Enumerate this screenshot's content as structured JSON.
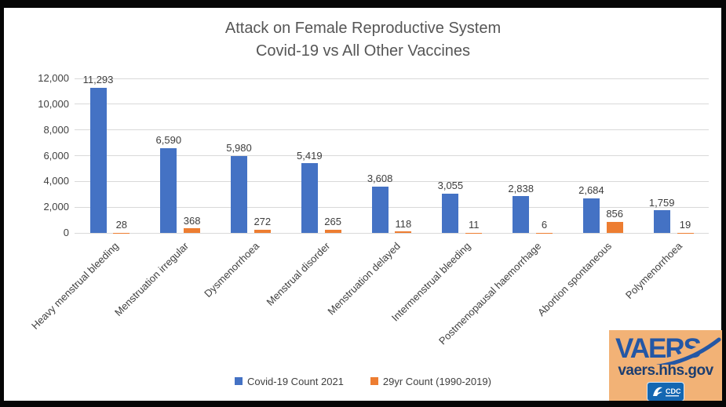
{
  "title": {
    "line1": "Attack on Female Reproductive System",
    "line2": "Covid-19 vs All Other Vaccines"
  },
  "chart_data": {
    "type": "bar",
    "title": "Attack on Female Reproductive System",
    "subtitle": "Covid-19 vs All Other Vaccines",
    "categories": [
      "Heavy menstrual bleeding",
      "Menstruation irregular",
      "Dysmenorrhoea",
      "Menstrual disorder",
      "Menstruation delayed",
      "Intermenstrual bleeding",
      "Postmenopausal haemorrhage",
      "Abortion spontaneous",
      "Polymenorrhoea"
    ],
    "series": [
      {
        "name": "Covid-19 Count 2021",
        "color": "#4472c4",
        "values": [
          11293,
          6590,
          5980,
          5419,
          3608,
          3055,
          2838,
          2684,
          1759
        ],
        "labels": [
          "11,293",
          "6,590",
          "5,980",
          "5,419",
          "3,608",
          "3,055",
          "2,838",
          "2,684",
          "1,759"
        ]
      },
      {
        "name": "29yr Count (1990-2019)",
        "color": "#ed7d31",
        "values": [
          28,
          368,
          272,
          265,
          118,
          11,
          6,
          856,
          19
        ],
        "labels": [
          "28",
          "368",
          "272",
          "265",
          "118",
          "11",
          "6",
          "856",
          "19"
        ]
      }
    ],
    "ylim": [
      0,
      12000
    ],
    "ytick_step": 2000,
    "ytick_labels": [
      "0",
      "2,000",
      "4,000",
      "6,000",
      "8,000",
      "10,000",
      "12,000"
    ],
    "grid": true,
    "legend_position": "bottom",
    "xlabel": "",
    "ylabel": ""
  },
  "colors": {
    "grid": "#d9d9d9",
    "axis_text": "#404040",
    "title_text": "#565656"
  },
  "watermark": {
    "brand": "VAERS",
    "url": "vaers.hhs.gov",
    "cdc_label": "CDC",
    "background": "#f2b276",
    "brand_color": "#2457a5",
    "url_color": "#1c3e70",
    "cdc_badge_color": "#1467b2"
  }
}
